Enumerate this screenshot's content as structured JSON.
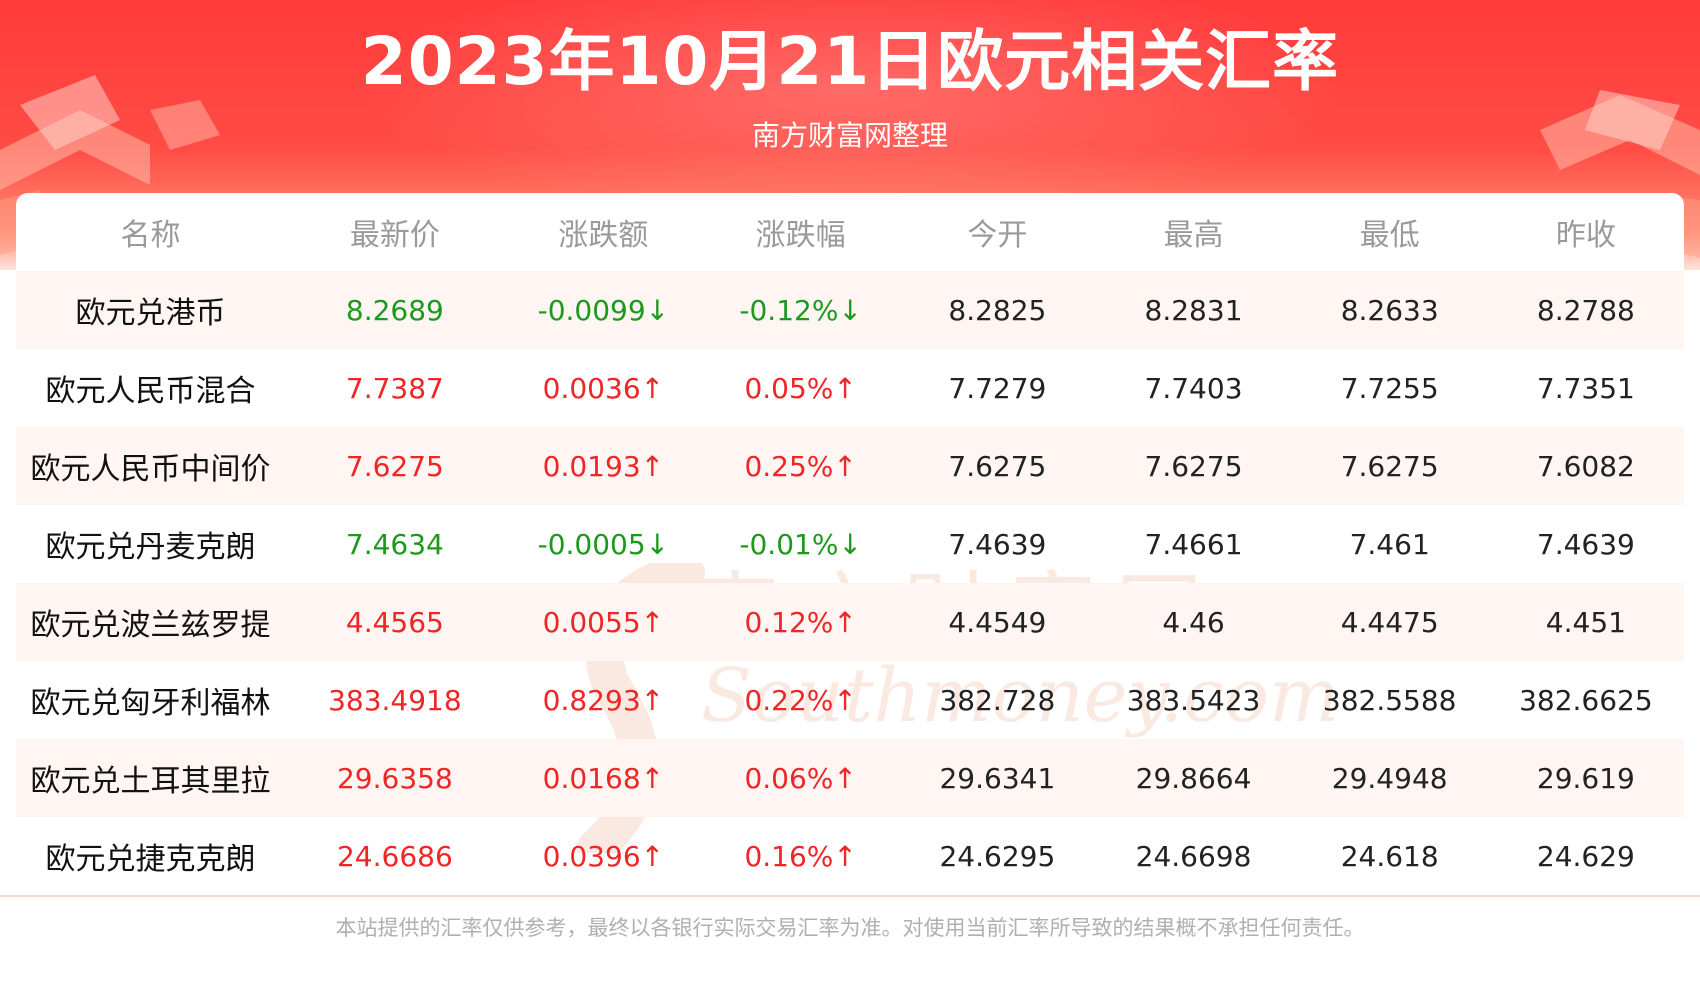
{
  "header": {
    "title": "2023年10月21日欧元相关汇率",
    "subtitle": "南方财富网整理"
  },
  "table": {
    "columns": [
      "名称",
      "最新价",
      "涨跌额",
      "涨跌幅",
      "今开",
      "最高",
      "最低",
      "昨收"
    ],
    "rows": [
      {
        "name": "欧元兑港币",
        "latest": "8.2689",
        "change": "-0.0099↓",
        "change_pct": "-0.12%↓",
        "open": "8.2825",
        "high": "8.2831",
        "low": "8.2633",
        "prev_close": "8.2788",
        "direction": "down"
      },
      {
        "name": "欧元人民币混合",
        "latest": "7.7387",
        "change": "0.0036↑",
        "change_pct": "0.05%↑",
        "open": "7.7279",
        "high": "7.7403",
        "low": "7.7255",
        "prev_close": "7.7351",
        "direction": "up"
      },
      {
        "name": "欧元人民币中间价",
        "latest": "7.6275",
        "change": "0.0193↑",
        "change_pct": "0.25%↑",
        "open": "7.6275",
        "high": "7.6275",
        "low": "7.6275",
        "prev_close": "7.6082",
        "direction": "up"
      },
      {
        "name": "欧元兑丹麦克朗",
        "latest": "7.4634",
        "change": "-0.0005↓",
        "change_pct": "-0.01%↓",
        "open": "7.4639",
        "high": "7.4661",
        "low": "7.461",
        "prev_close": "7.4639",
        "direction": "down"
      },
      {
        "name": "欧元兑波兰兹罗提",
        "latest": "4.4565",
        "change": "0.0055↑",
        "change_pct": "0.12%↑",
        "open": "4.4549",
        "high": "4.46",
        "low": "4.4475",
        "prev_close": "4.451",
        "direction": "up"
      },
      {
        "name": "欧元兑匈牙利福林",
        "latest": "383.4918",
        "change": "0.8293↑",
        "change_pct": "0.22%↑",
        "open": "382.728",
        "high": "383.5423",
        "low": "382.5588",
        "prev_close": "382.6625",
        "direction": "up"
      },
      {
        "name": "欧元兑土耳其里拉",
        "latest": "29.6358",
        "change": "0.0168↑",
        "change_pct": "0.06%↑",
        "open": "29.6341",
        "high": "29.8664",
        "low": "29.4948",
        "prev_close": "29.619",
        "direction": "up"
      },
      {
        "name": "欧元兑捷克克朗",
        "latest": "24.6686",
        "change": "0.0396↑",
        "change_pct": "0.16%↑",
        "open": "24.6295",
        "high": "24.6698",
        "low": "24.618",
        "prev_close": "24.629",
        "direction": "up"
      }
    ]
  },
  "watermark": {
    "cn": "南方财富网",
    "en": "Southmoney.com"
  },
  "footer": {
    "disclaimer": "本站提供的汇率仅供参考，最终以各银行实际交易汇率为准。对使用当前汇率所导致的结果概不承担任何责任。"
  },
  "colors": {
    "banner_red": "#ff3b3b",
    "up": "#f02525",
    "down": "#1c9a1c",
    "row_stripe": "#fff6f3"
  }
}
